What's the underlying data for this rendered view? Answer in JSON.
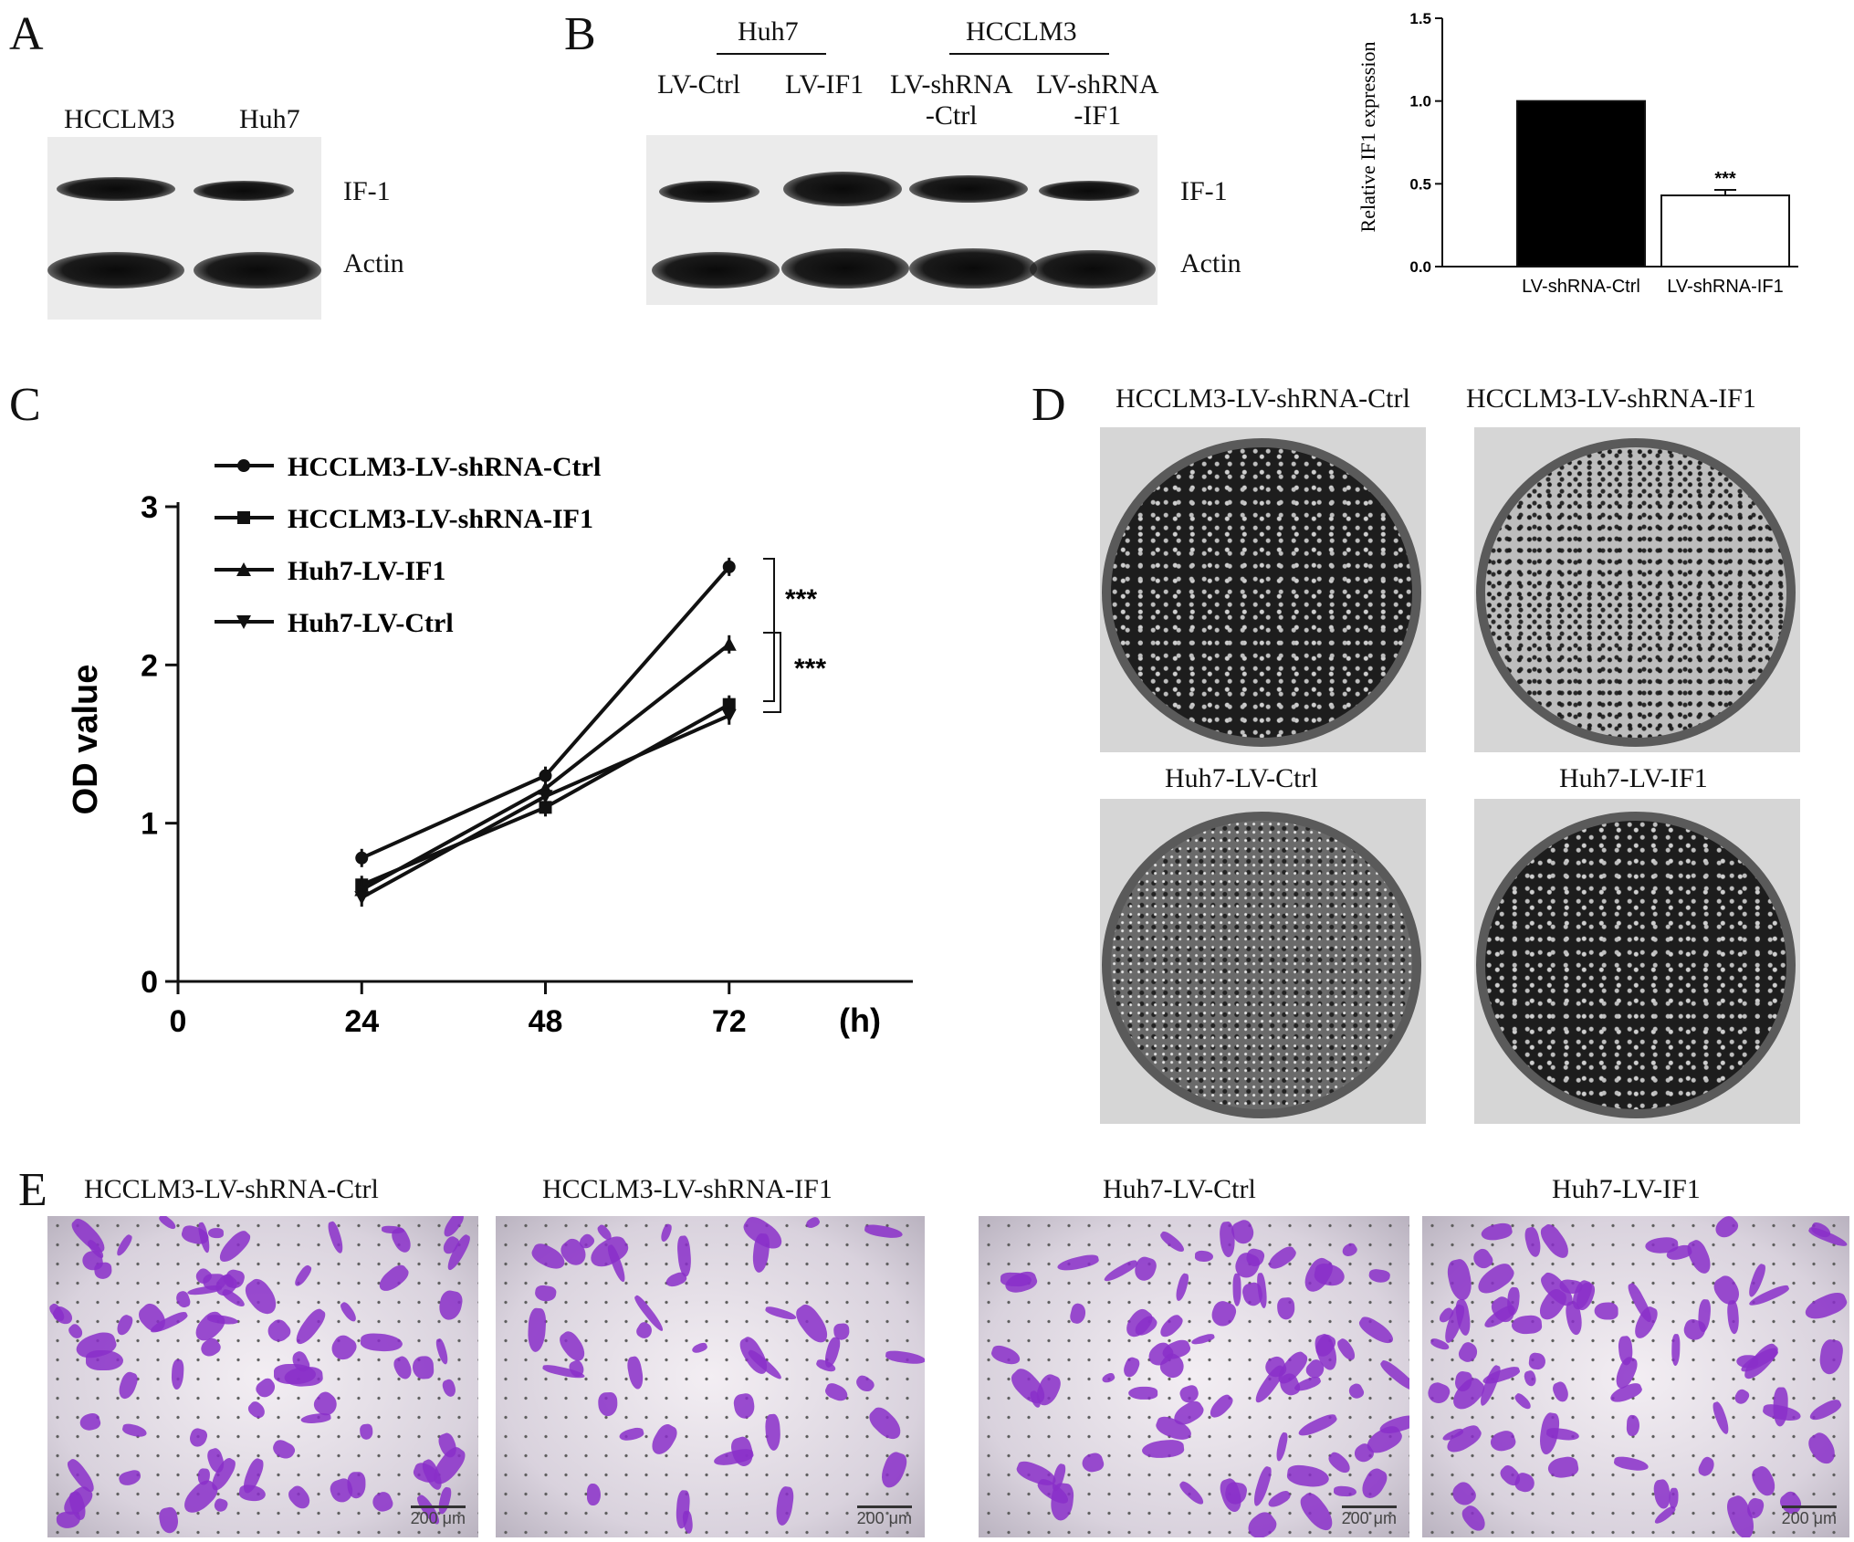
{
  "panel_a": {
    "letter": "A",
    "lanes": [
      "HCCLM3",
      "Huh7"
    ],
    "rows": [
      "IF-1",
      "Actin"
    ]
  },
  "panel_b": {
    "letter": "B",
    "groups": [
      "Huh7",
      "HCCLM3"
    ],
    "lanes": [
      "LV-Ctrl",
      "LV-IF1",
      "LV-shRNA\n-Ctrl",
      "LV-shRNA\n-IF1"
    ],
    "rows": [
      "IF-1",
      "Actin"
    ],
    "bar_chart": {
      "type": "bar",
      "ylabel": "Relative IF1 expression",
      "yticks": [
        "0.0",
        "0.5",
        "1.0",
        "1.5"
      ],
      "categories": [
        "LV-shRNA-Ctrl",
        "LV-shRNA-IF1"
      ],
      "values": [
        1.0,
        0.43
      ],
      "ylim": [
        0,
        1.5
      ],
      "annotation": "***",
      "colors": [
        "#000000",
        "#ffffff"
      ]
    }
  },
  "panel_c": {
    "letter": "C",
    "ylabel": "OD value",
    "yticks": [
      "0",
      "1",
      "2",
      "3"
    ],
    "xticks": [
      "0",
      "24",
      "48",
      "72"
    ],
    "xunit": "(h)",
    "significance": [
      "***",
      "***"
    ]
  },
  "chart_data": {
    "type": "line",
    "x": [
      24,
      48,
      72
    ],
    "xlabel": "(h)",
    "ylabel": "OD value",
    "xlim": [
      0,
      96
    ],
    "ylim": [
      0,
      3
    ],
    "series": [
      {
        "name": "HCCLM3-LV-shRNA-Ctrl",
        "marker": "circle",
        "values": [
          0.78,
          1.3,
          2.62
        ]
      },
      {
        "name": "HCCLM3-LV-shRNA-IF1",
        "marker": "square",
        "values": [
          0.61,
          1.1,
          1.75
        ]
      },
      {
        "name": "Huh7-LV-IF1",
        "marker": "triangle-up",
        "values": [
          0.58,
          1.22,
          2.13
        ]
      },
      {
        "name": "Huh7-LV-Ctrl",
        "marker": "triangle-down",
        "values": [
          0.53,
          1.17,
          1.68
        ]
      }
    ]
  },
  "panel_d": {
    "letter": "D",
    "dishes": [
      "HCCLM3-LV-shRNA-Ctrl",
      "HCCLM3-LV-shRNA-IF1",
      "Huh7-LV-Ctrl",
      "Huh7-LV-IF1"
    ]
  },
  "panel_e": {
    "letter": "E",
    "images": [
      "HCCLM3-LV-shRNA-Ctrl",
      "HCCLM3-LV-shRNA-IF1",
      "Huh7-LV-Ctrl",
      "Huh7-LV-IF1"
    ],
    "scale": "200 μm"
  }
}
